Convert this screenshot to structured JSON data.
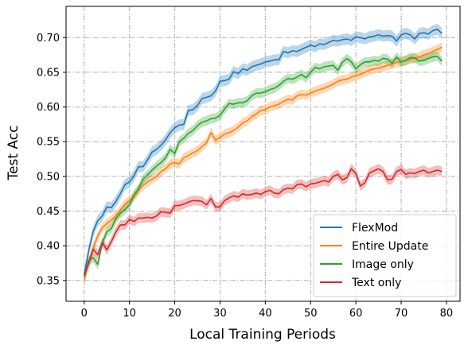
{
  "chart_data": {
    "type": "line",
    "xlabel": "Local Training Periods",
    "ylabel": "Test Acc",
    "xlim": [
      -4,
      83
    ],
    "ylim": [
      0.32,
      0.745
    ],
    "x_ticks": [
      0,
      10,
      20,
      30,
      40,
      50,
      60,
      70,
      80
    ],
    "y_ticks": [
      0.35,
      0.4,
      0.45,
      0.5,
      0.55,
      0.6,
      0.65,
      0.7
    ],
    "grid": true,
    "grid_style": "dash-dot",
    "legend_position": "lower-right",
    "x": [
      0,
      1,
      2,
      3,
      4,
      5,
      6,
      7,
      8,
      9,
      10,
      11,
      12,
      13,
      14,
      15,
      16,
      17,
      18,
      19,
      20,
      21,
      22,
      23,
      24,
      25,
      26,
      27,
      28,
      29,
      30,
      31,
      32,
      33,
      34,
      35,
      36,
      37,
      38,
      39,
      40,
      41,
      42,
      43,
      44,
      45,
      46,
      47,
      48,
      49,
      50,
      51,
      52,
      53,
      54,
      55,
      56,
      57,
      58,
      59,
      60,
      61,
      62,
      63,
      64,
      65,
      66,
      67,
      68,
      69,
      70,
      71,
      72,
      73,
      74,
      75,
      76,
      77,
      78,
      79
    ],
    "series": [
      {
        "name": "FlexMod",
        "color": "#1f77b4",
        "band": 0.008,
        "values": [
          0.358,
          0.393,
          0.421,
          0.436,
          0.443,
          0.456,
          0.455,
          0.464,
          0.475,
          0.488,
          0.492,
          0.501,
          0.514,
          0.514,
          0.524,
          0.535,
          0.539,
          0.545,
          0.553,
          0.563,
          0.57,
          0.574,
          0.575,
          0.595,
          0.596,
          0.602,
          0.612,
          0.614,
          0.616,
          0.623,
          0.637,
          0.638,
          0.64,
          0.651,
          0.648,
          0.655,
          0.653,
          0.658,
          0.66,
          0.662,
          0.665,
          0.666,
          0.668,
          0.668,
          0.68,
          0.678,
          0.681,
          0.68,
          0.683,
          0.686,
          0.689,
          0.687,
          0.691,
          0.69,
          0.693,
          0.696,
          0.695,
          0.697,
          0.698,
          0.696,
          0.701,
          0.7,
          0.698,
          0.701,
          0.702,
          0.704,
          0.702,
          0.703,
          0.702,
          0.695,
          0.704,
          0.706,
          0.704,
          0.698,
          0.706,
          0.707,
          0.705,
          0.71,
          0.712,
          0.706
        ]
      },
      {
        "name": "Entire Update",
        "color": "#ff7f0e",
        "band": 0.007,
        "values": [
          0.35,
          0.375,
          0.397,
          0.414,
          0.426,
          0.432,
          0.437,
          0.443,
          0.451,
          0.46,
          0.465,
          0.471,
          0.48,
          0.487,
          0.492,
          0.496,
          0.5,
          0.507,
          0.511,
          0.518,
          0.52,
          0.518,
          0.527,
          0.53,
          0.534,
          0.537,
          0.543,
          0.548,
          0.563,
          0.552,
          0.556,
          0.561,
          0.563,
          0.566,
          0.571,
          0.577,
          0.58,
          0.586,
          0.59,
          0.595,
          0.596,
          0.6,
          0.602,
          0.604,
          0.608,
          0.611,
          0.61,
          0.616,
          0.618,
          0.617,
          0.62,
          0.623,
          0.625,
          0.627,
          0.63,
          0.633,
          0.637,
          0.639,
          0.64,
          0.643,
          0.645,
          0.647,
          0.65,
          0.653,
          0.655,
          0.656,
          0.658,
          0.66,
          0.662,
          0.664,
          0.665,
          0.667,
          0.669,
          0.67,
          0.672,
          0.675,
          0.677,
          0.68,
          0.683,
          0.686
        ]
      },
      {
        "name": "Image only",
        "color": "#2ca02c",
        "band": 0.007,
        "values": [
          0.355,
          0.378,
          0.383,
          0.373,
          0.404,
          0.42,
          0.425,
          0.439,
          0.447,
          0.452,
          0.459,
          0.473,
          0.482,
          0.496,
          0.502,
          0.509,
          0.515,
          0.52,
          0.527,
          0.539,
          0.533,
          0.55,
          0.555,
          0.562,
          0.566,
          0.573,
          0.578,
          0.58,
          0.583,
          0.584,
          0.588,
          0.597,
          0.605,
          0.604,
          0.606,
          0.606,
          0.609,
          0.616,
          0.62,
          0.62,
          0.622,
          0.625,
          0.627,
          0.631,
          0.637,
          0.641,
          0.64,
          0.643,
          0.647,
          0.642,
          0.65,
          0.657,
          0.655,
          0.658,
          0.659,
          0.66,
          0.653,
          0.664,
          0.67,
          0.665,
          0.655,
          0.661,
          0.665,
          0.665,
          0.667,
          0.666,
          0.67,
          0.669,
          0.663,
          0.672,
          0.665,
          0.667,
          0.671,
          0.671,
          0.666,
          0.667,
          0.67,
          0.672,
          0.673,
          0.666
        ]
      },
      {
        "name": "Text only",
        "color": "#d62728",
        "band": 0.007,
        "values": [
          0.358,
          0.375,
          0.395,
          0.387,
          0.405,
          0.394,
          0.406,
          0.42,
          0.43,
          0.43,
          0.438,
          0.435,
          0.44,
          0.44,
          0.441,
          0.44,
          0.443,
          0.449,
          0.448,
          0.447,
          0.458,
          0.458,
          0.46,
          0.463,
          0.465,
          0.465,
          0.464,
          0.459,
          0.468,
          0.456,
          0.456,
          0.465,
          0.469,
          0.472,
          0.47,
          0.475,
          0.473,
          0.474,
          0.476,
          0.474,
          0.478,
          0.48,
          0.476,
          0.475,
          0.481,
          0.483,
          0.482,
          0.488,
          0.489,
          0.485,
          0.489,
          0.49,
          0.492,
          0.494,
          0.492,
          0.5,
          0.503,
          0.495,
          0.498,
          0.511,
          0.504,
          0.486,
          0.491,
          0.505,
          0.508,
          0.511,
          0.507,
          0.495,
          0.496,
          0.507,
          0.51,
          0.503,
          0.505,
          0.504,
          0.507,
          0.509,
          0.505,
          0.507,
          0.509,
          0.507
        ]
      }
    ]
  }
}
